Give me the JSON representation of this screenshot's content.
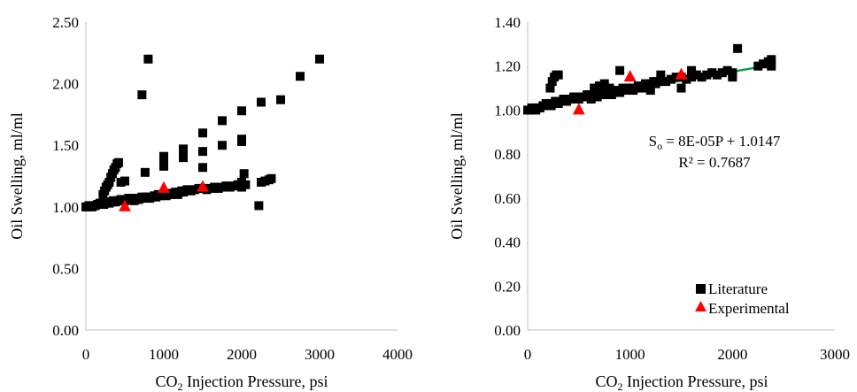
{
  "chart_data": [
    {
      "type": "scatter",
      "title": "",
      "xlabel": "CO2 Injection Pressure, psi",
      "xlabel_main": "CO",
      "xlabel_sub": "2",
      "xlabel_rest": " Injection Pressure, psi",
      "ylabel": "Oil Swelling, ml/ml",
      "xlim": [
        0,
        4000
      ],
      "ylim": [
        0,
        2.5
      ],
      "xticks": [
        "0",
        "1000",
        "2000",
        "3000",
        "4000"
      ],
      "yticks": [
        "0.00",
        "0.50",
        "1.00",
        "1.50",
        "2.00",
        "2.50"
      ],
      "grid": false,
      "series": [
        {
          "name": "Literature",
          "marker": "square",
          "color": "#000000",
          "points": [
            [
              0,
              1.0
            ],
            [
              20,
              1.0
            ],
            [
              40,
              1.01
            ],
            [
              60,
              1.01
            ],
            [
              80,
              1.0
            ],
            [
              100,
              1.01
            ],
            [
              120,
              1.01
            ],
            [
              150,
              1.02
            ],
            [
              180,
              1.03
            ],
            [
              200,
              1.02
            ],
            [
              230,
              1.02
            ],
            [
              250,
              1.03
            ],
            [
              270,
              1.04
            ],
            [
              300,
              1.03
            ],
            [
              330,
              1.04
            ],
            [
              350,
              1.05
            ],
            [
              380,
              1.04
            ],
            [
              400,
              1.05
            ],
            [
              430,
              1.05
            ],
            [
              450,
              1.06
            ],
            [
              480,
              1.06
            ],
            [
              500,
              1.05
            ],
            [
              520,
              1.06
            ],
            [
              550,
              1.06
            ],
            [
              580,
              1.07
            ],
            [
              600,
              1.07
            ],
            [
              620,
              1.05
            ],
            [
              650,
              1.06
            ],
            [
              680,
              1.06
            ],
            [
              700,
              1.07
            ],
            [
              720,
              1.08
            ],
            [
              750,
              1.07
            ],
            [
              780,
              1.08
            ],
            [
              800,
              1.08
            ],
            [
              820,
              1.07
            ],
            [
              850,
              1.08
            ],
            [
              880,
              1.09
            ],
            [
              900,
              1.08
            ],
            [
              930,
              1.1
            ],
            [
              950,
              1.09
            ],
            [
              980,
              1.1
            ],
            [
              1000,
              1.1
            ],
            [
              1030,
              1.09
            ],
            [
              1050,
              1.1
            ],
            [
              1080,
              1.11
            ],
            [
              1100,
              1.1
            ],
            [
              1130,
              1.11
            ],
            [
              1150,
              1.12
            ],
            [
              1180,
              1.1
            ],
            [
              1200,
              1.12
            ],
            [
              1230,
              1.13
            ],
            [
              1250,
              1.12
            ],
            [
              1280,
              1.13
            ],
            [
              1300,
              1.14
            ],
            [
              1350,
              1.13
            ],
            [
              1400,
              1.14
            ],
            [
              1450,
              1.15
            ],
            [
              1500,
              1.15
            ],
            [
              1550,
              1.14
            ],
            [
              1600,
              1.15
            ],
            [
              1650,
              1.16
            ],
            [
              1700,
              1.15
            ],
            [
              1750,
              1.16
            ],
            [
              1800,
              1.17
            ],
            [
              1850,
              1.16
            ],
            [
              1900,
              1.17
            ],
            [
              1950,
              1.18
            ],
            [
              2000,
              1.17
            ],
            [
              2000,
              1.2
            ],
            [
              2000,
              1.16
            ],
            [
              2050,
              1.18
            ],
            [
              2250,
              1.2
            ],
            [
              2300,
              1.21
            ],
            [
              2350,
              1.22
            ],
            [
              2380,
              1.23
            ],
            [
              220,
              1.1
            ],
            [
              240,
              1.13
            ],
            [
              260,
              1.16
            ],
            [
              280,
              1.18
            ],
            [
              300,
              1.2
            ],
            [
              320,
              1.24
            ],
            [
              340,
              1.27
            ],
            [
              360,
              1.3
            ],
            [
              380,
              1.32
            ],
            [
              400,
              1.35
            ],
            [
              420,
              1.36
            ],
            [
              450,
              1.2
            ],
            [
              500,
              1.21
            ],
            [
              550,
              1.07
            ],
            [
              760,
              1.28
            ],
            [
              1000,
              1.33
            ],
            [
              1000,
              1.38
            ],
            [
              1000,
              1.41
            ],
            [
              1250,
              1.4
            ],
            [
              1250,
              1.47
            ],
            [
              1500,
              1.32
            ],
            [
              1500,
              1.45
            ],
            [
              1500,
              1.6
            ],
            [
              1750,
              1.5
            ],
            [
              1750,
              1.7
            ],
            [
              2000,
              1.53
            ],
            [
              2000,
              1.55
            ],
            [
              2000,
              1.78
            ],
            [
              2030,
              1.27
            ],
            [
              2250,
              1.85
            ],
            [
              2500,
              1.87
            ],
            [
              2750,
              2.06
            ],
            [
              3000,
              2.2
            ],
            [
              720,
              1.91
            ],
            [
              800,
              2.2
            ],
            [
              2220,
              1.01
            ]
          ]
        },
        {
          "name": "Experimental",
          "marker": "triangle",
          "color": "#ff0000",
          "points": [
            [
              500,
              1.0
            ],
            [
              1000,
              1.15
            ],
            [
              1500,
              1.16
            ]
          ]
        }
      ]
    },
    {
      "type": "scatter",
      "title": "",
      "xlabel": "CO2 Injection Pressure, psi",
      "xlabel_main": "CO",
      "xlabel_sub": "2",
      "xlabel_rest": " Injection Pressure, psi",
      "ylabel": "Oil Swelling, ml/ml",
      "xlim": [
        0,
        3000
      ],
      "ylim": [
        0,
        1.4
      ],
      "xticks": [
        "0",
        "1000",
        "2000",
        "3000"
      ],
      "yticks": [
        "0.00",
        "0.20",
        "0.40",
        "0.60",
        "0.80",
        "1.00",
        "1.20",
        "1.40"
      ],
      "grid": false,
      "legend": {
        "position": "bottom-right",
        "entries": [
          "Literature",
          "Experimental"
        ]
      },
      "trendline": {
        "color": "#00a050",
        "slope": 8e-05,
        "intercept": 1.0147,
        "x_range": [
          0,
          2380
        ],
        "equation_prefix": "S",
        "equation_sub": "o",
        "equation_rest": " = 8E-05P + 1.0147",
        "r2": "R² = 0.7687"
      },
      "series": [
        {
          "name": "Literature",
          "marker": "square",
          "color": "#000000",
          "points": [
            [
              0,
              1.0
            ],
            [
              20,
              1.0
            ],
            [
              40,
              1.01
            ],
            [
              60,
              1.01
            ],
            [
              80,
              1.0
            ],
            [
              100,
              1.01
            ],
            [
              120,
              1.01
            ],
            [
              150,
              1.02
            ],
            [
              180,
              1.03
            ],
            [
              200,
              1.02
            ],
            [
              230,
              1.02
            ],
            [
              250,
              1.03
            ],
            [
              270,
              1.04
            ],
            [
              300,
              1.03
            ],
            [
              330,
              1.04
            ],
            [
              350,
              1.05
            ],
            [
              380,
              1.04
            ],
            [
              400,
              1.05
            ],
            [
              430,
              1.05
            ],
            [
              450,
              1.06
            ],
            [
              480,
              1.06
            ],
            [
              500,
              1.05
            ],
            [
              520,
              1.06
            ],
            [
              550,
              1.06
            ],
            [
              580,
              1.07
            ],
            [
              600,
              1.07
            ],
            [
              620,
              1.05
            ],
            [
              650,
              1.06
            ],
            [
              680,
              1.06
            ],
            [
              700,
              1.07
            ],
            [
              720,
              1.08
            ],
            [
              750,
              1.07
            ],
            [
              780,
              1.08
            ],
            [
              800,
              1.08
            ],
            [
              820,
              1.07
            ],
            [
              850,
              1.08
            ],
            [
              880,
              1.09
            ],
            [
              900,
              1.08
            ],
            [
              930,
              1.1
            ],
            [
              950,
              1.09
            ],
            [
              980,
              1.1
            ],
            [
              1000,
              1.1
            ],
            [
              1030,
              1.09
            ],
            [
              1050,
              1.1
            ],
            [
              1080,
              1.11
            ],
            [
              1100,
              1.1
            ],
            [
              1130,
              1.11
            ],
            [
              1150,
              1.12
            ],
            [
              1180,
              1.1
            ],
            [
              1200,
              1.12
            ],
            [
              1230,
              1.13
            ],
            [
              1250,
              1.12
            ],
            [
              1280,
              1.13
            ],
            [
              1300,
              1.14
            ],
            [
              1350,
              1.13
            ],
            [
              1400,
              1.14
            ],
            [
              1450,
              1.15
            ],
            [
              1500,
              1.15
            ],
            [
              1550,
              1.14
            ],
            [
              1600,
              1.15
            ],
            [
              1650,
              1.16
            ],
            [
              1700,
              1.15
            ],
            [
              1750,
              1.16
            ],
            [
              1800,
              1.17
            ],
            [
              1850,
              1.16
            ],
            [
              1900,
              1.17
            ],
            [
              1950,
              1.18
            ],
            [
              2000,
              1.17
            ],
            [
              2000,
              1.16
            ],
            [
              2000,
              1.15
            ],
            [
              2050,
              1.28
            ],
            [
              2250,
              1.2
            ],
            [
              2300,
              1.21
            ],
            [
              2350,
              1.22
            ],
            [
              2380,
              1.23
            ],
            [
              2380,
              1.2
            ],
            [
              220,
              1.1
            ],
            [
              240,
              1.13
            ],
            [
              260,
              1.15
            ],
            [
              280,
              1.16
            ],
            [
              300,
              1.16
            ],
            [
              650,
              1.1
            ],
            [
              700,
              1.11
            ],
            [
              750,
              1.12
            ],
            [
              800,
              1.1
            ],
            [
              900,
              1.18
            ],
            [
              1200,
              1.09
            ],
            [
              1300,
              1.16
            ],
            [
              1500,
              1.1
            ],
            [
              1600,
              1.18
            ]
          ]
        },
        {
          "name": "Experimental",
          "marker": "triangle",
          "color": "#ff0000",
          "points": [
            [
              500,
              1.0
            ],
            [
              1000,
              1.15
            ],
            [
              1500,
              1.16
            ]
          ]
        }
      ]
    }
  ]
}
